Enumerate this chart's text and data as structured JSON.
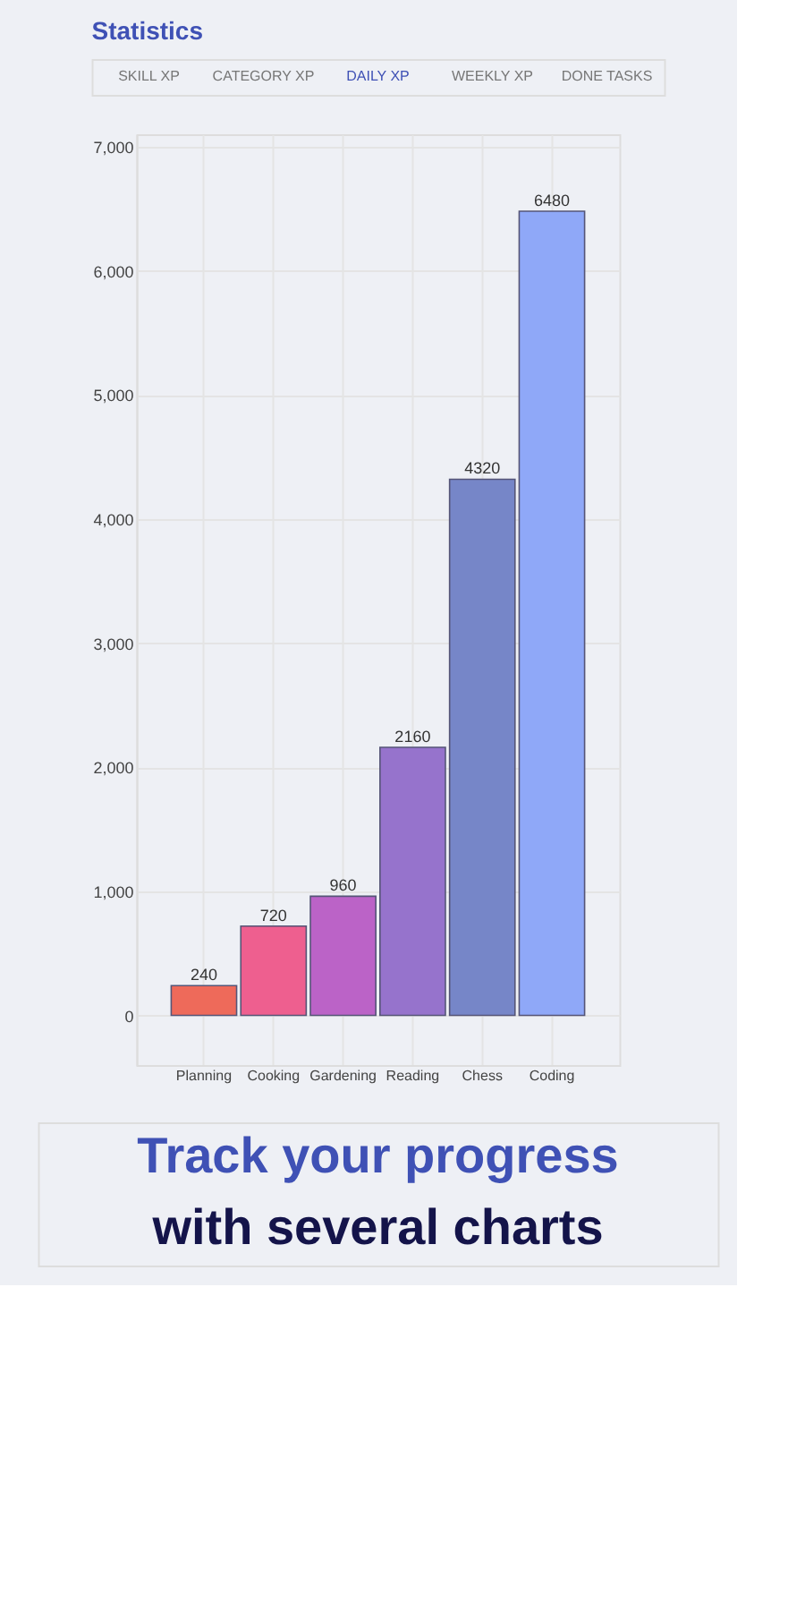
{
  "chart_data": {
    "type": "bar",
    "title": "Statistics",
    "annotations": [
      "SKILL XP",
      "CATEGORY XP",
      "DAILY XP",
      "WEEKLY XP",
      "DONE TASKS",
      "Track your progress",
      "with several charts"
    ],
    "categories": [
      "Planning",
      "Cooking",
      "Gardening",
      "Reading",
      "Chess",
      "Coding"
    ],
    "values": [
      240,
      720,
      960,
      2160,
      4320,
      6480
    ],
    "colors": [
      "#ee6a5a",
      "#ee5f8f",
      "#bb63c7",
      "#9673cc",
      "#7686c8",
      "#8fa8f8"
    ],
    "ylim": [
      -400,
      7100
    ],
    "yticks": [
      0,
      {
        "value": 1000,
        "label": "1,000"
      },
      {
        "value": 2000,
        "label": "2,000"
      },
      {
        "value": 3000,
        "label": "3,000"
      },
      {
        "value": 4000,
        "label": "4,000"
      },
      {
        "value": 5000,
        "label": "5,000"
      },
      {
        "value": 6000,
        "label": "6,000"
      },
      {
        "value": 7000,
        "label": "7,000"
      }
    ],
    "grid": true,
    "data_labels": true
  }
}
